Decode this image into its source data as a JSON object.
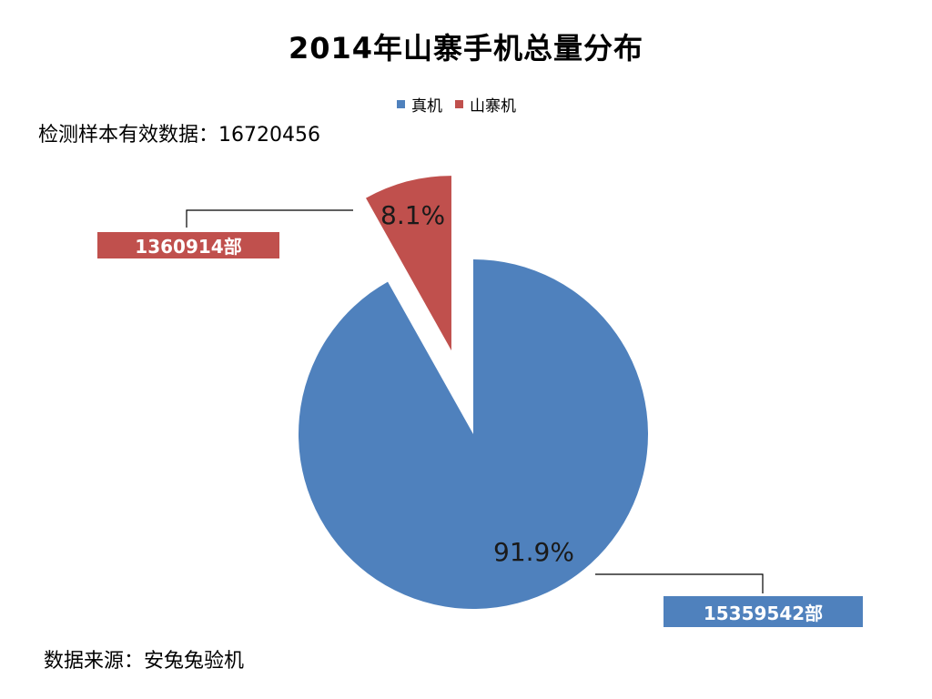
{
  "chart_data": {
    "type": "pie",
    "title": "2014年山寨手机总量分布",
    "subtitle": "检测样本有效数据：16720456",
    "source": "数据来源：安兔兔验机",
    "legend_position": "top",
    "series": [
      {
        "name": "真机",
        "value": 15359542,
        "value_label": "15359542部",
        "percent": 91.9,
        "percent_label": "91.9%",
        "color": "#4F81BD"
      },
      {
        "name": "山寨机",
        "value": 1360914,
        "value_label": "1360914部",
        "percent": 8.1,
        "percent_label": "8.1%",
        "color": "#C0504D"
      }
    ]
  }
}
